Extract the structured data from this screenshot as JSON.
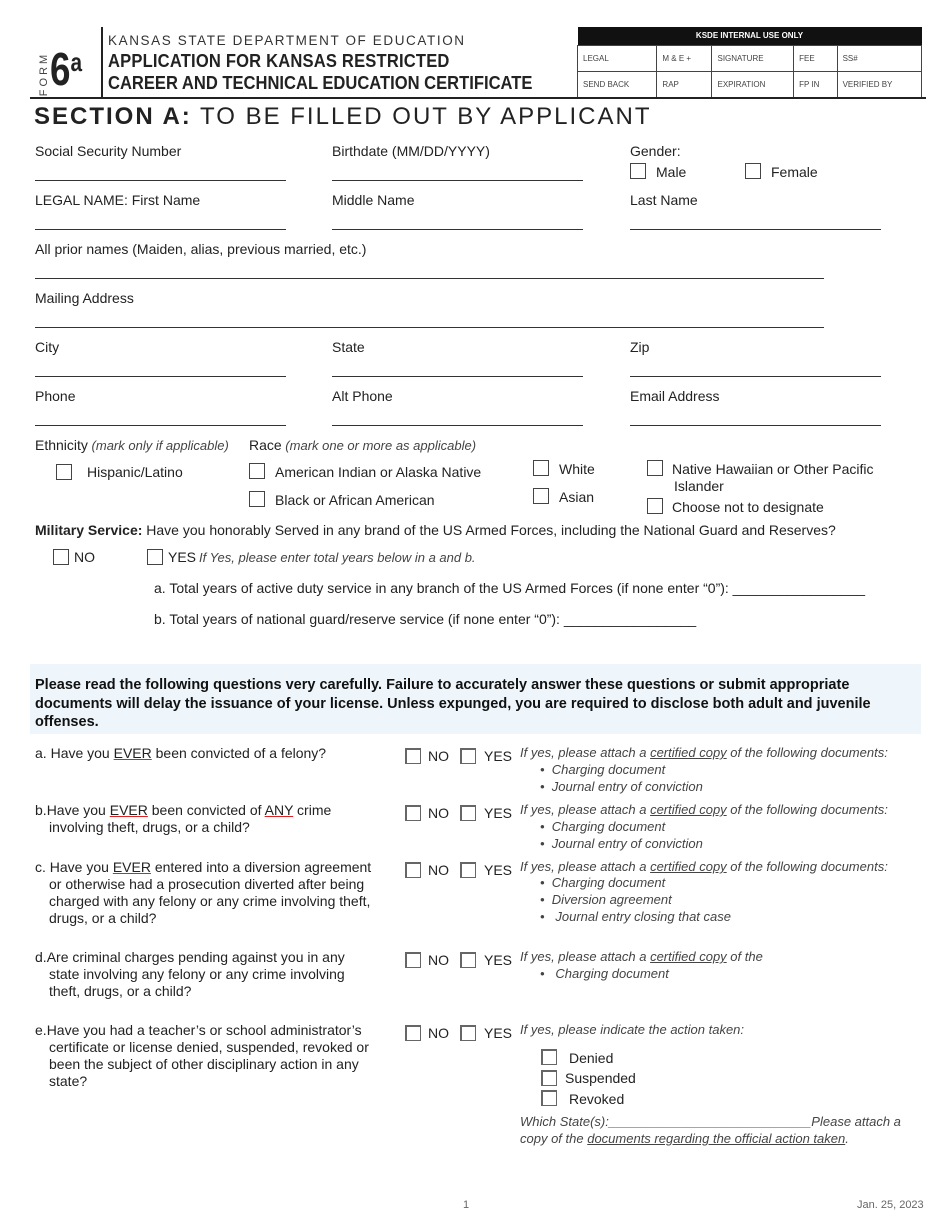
{
  "header": {
    "form_label": "FORM",
    "form_number": "6",
    "form_suffix": "a",
    "department": "KANSAS STATE DEPARTMENT OF EDUCATION",
    "title_line1": "APPLICATION FOR KANSAS RESTRICTED",
    "title_line2": "CAREER AND TECHNICAL EDUCATION CERTIFICATE"
  },
  "internal_use": {
    "title": "KSDE INTERNAL USE ONLY",
    "row1": [
      "LEGAL",
      "M & E +",
      "SIGNATURE",
      "FEE",
      "SS#"
    ],
    "row2": [
      "SEND BACK",
      "RAP",
      "EXPIRATION",
      "FP IN",
      "VERIFIED BY"
    ]
  },
  "section": {
    "bold": "SECTION A:",
    "rest": " TO BE FILLED OUT BY APPLICANT"
  },
  "fields": {
    "ssn": "Social Security Number",
    "birthdate": "Birthdate (MM/DD/YYYY)",
    "gender": "Gender:",
    "male": "Male",
    "female": "Female",
    "first_name": "LEGAL NAME: First Name",
    "middle_name": "Middle Name",
    "last_name": "Last Name",
    "prior_names": "All prior names (Maiden, alias, previous married, etc.)",
    "mailing": "Mailing Address",
    "city": "City",
    "state": "State",
    "zip": "Zip",
    "phone": "Phone",
    "alt_phone": "Alt Phone",
    "email": "Email Address"
  },
  "ethnicity": {
    "label": "Ethnicity",
    "hint": " (mark only if applicable)",
    "race_label": "Race",
    "race_hint": " (mark one or more as applicable)",
    "hispanic": "Hispanic/Latino",
    "american_indian": "American Indian or Alaska Native",
    "black": "Black or African American",
    "white": "White",
    "asian": "Asian",
    "native_hawaiian_1": "Native Hawaiian or Other Pacific",
    "native_hawaiian_2": "Islander",
    "choose_not": "Choose not to designate"
  },
  "military": {
    "label": "Military Service:",
    "question": "  Have you honorably Served in any brand of the US Armed Forces, including the National Guard and Reserves?",
    "no": "NO",
    "yes": "YES",
    "yes_hint": "If Yes, please enter total years below in a and b.",
    "a": "a. Total years of active duty service in any branch of the US Armed Forces (if none enter “0”): _________________",
    "b": "b. Total years of national guard/reserve service (if none enter “0”): _________________"
  },
  "notice": "Please read the following questions very carefully. Failure to accurately answer these questions or submit appropriate documents will delay the issuance of your license. Unless expunged, you are required to disclose both adult and juvenile offenses.",
  "questions": {
    "no": "NO",
    "yes": "YES",
    "attach_pre": "If yes, please attach a ",
    "certified": "certified copy",
    "attach_post": " of the following documents:",
    "attach_post_d": " of the",
    "a_letter": "a.",
    "a_pre": "Have you ",
    "ever": "EVER",
    "a_post": " been convicted of a felony?",
    "b_letter": "b.",
    "b_mid": " been convicted of ",
    "any": "ANY",
    "b_post": " crime",
    "b_line2": "involving theft, drugs, or a child?",
    "c_letter": "c.",
    "c_post": " entered into a diversion agreement",
    "c_line2": "or otherwise had a prosecution diverted after being",
    "c_line3": "charged with any felony or any crime involving theft,",
    "c_line4": "drugs, or a child?",
    "d_letter": "d.",
    "d_line1": "Are criminal charges pending against you in any",
    "d_line2": "state involving any felony or any crime involving",
    "d_line3": "theft, drugs, or a child?",
    "e_letter": "e.",
    "e_line1": "Have you had a teacher’s or school administrator’s",
    "e_line2": "certificate or license denied, suspended, revoked or",
    "e_line3": "been the subject of other disciplinary action in any",
    "e_line4": "state?",
    "charging": "Charging document",
    "journal_conviction": "Journal entry of conviction",
    "diversion": "Diversion agreement",
    "journal_closing": "Journal entry closing that case",
    "e_hint": "If yes, please indicate the action taken:",
    "denied": "Denied",
    "suspended": "Suspended",
    "revoked": "Revoked",
    "which_state": "Which State(s):____________________________",
    "please_attach": "Please attach a",
    "copy_of": "copy of the ",
    "documents_official": "documents regarding the official action taken",
    "period": "."
  },
  "footer": {
    "page": "1",
    "date": "Jan. 25, 2023"
  },
  "colors": {
    "notice_bg": "#eef6fc",
    "header_black": "#111111",
    "underline_red": "#dd2222"
  }
}
